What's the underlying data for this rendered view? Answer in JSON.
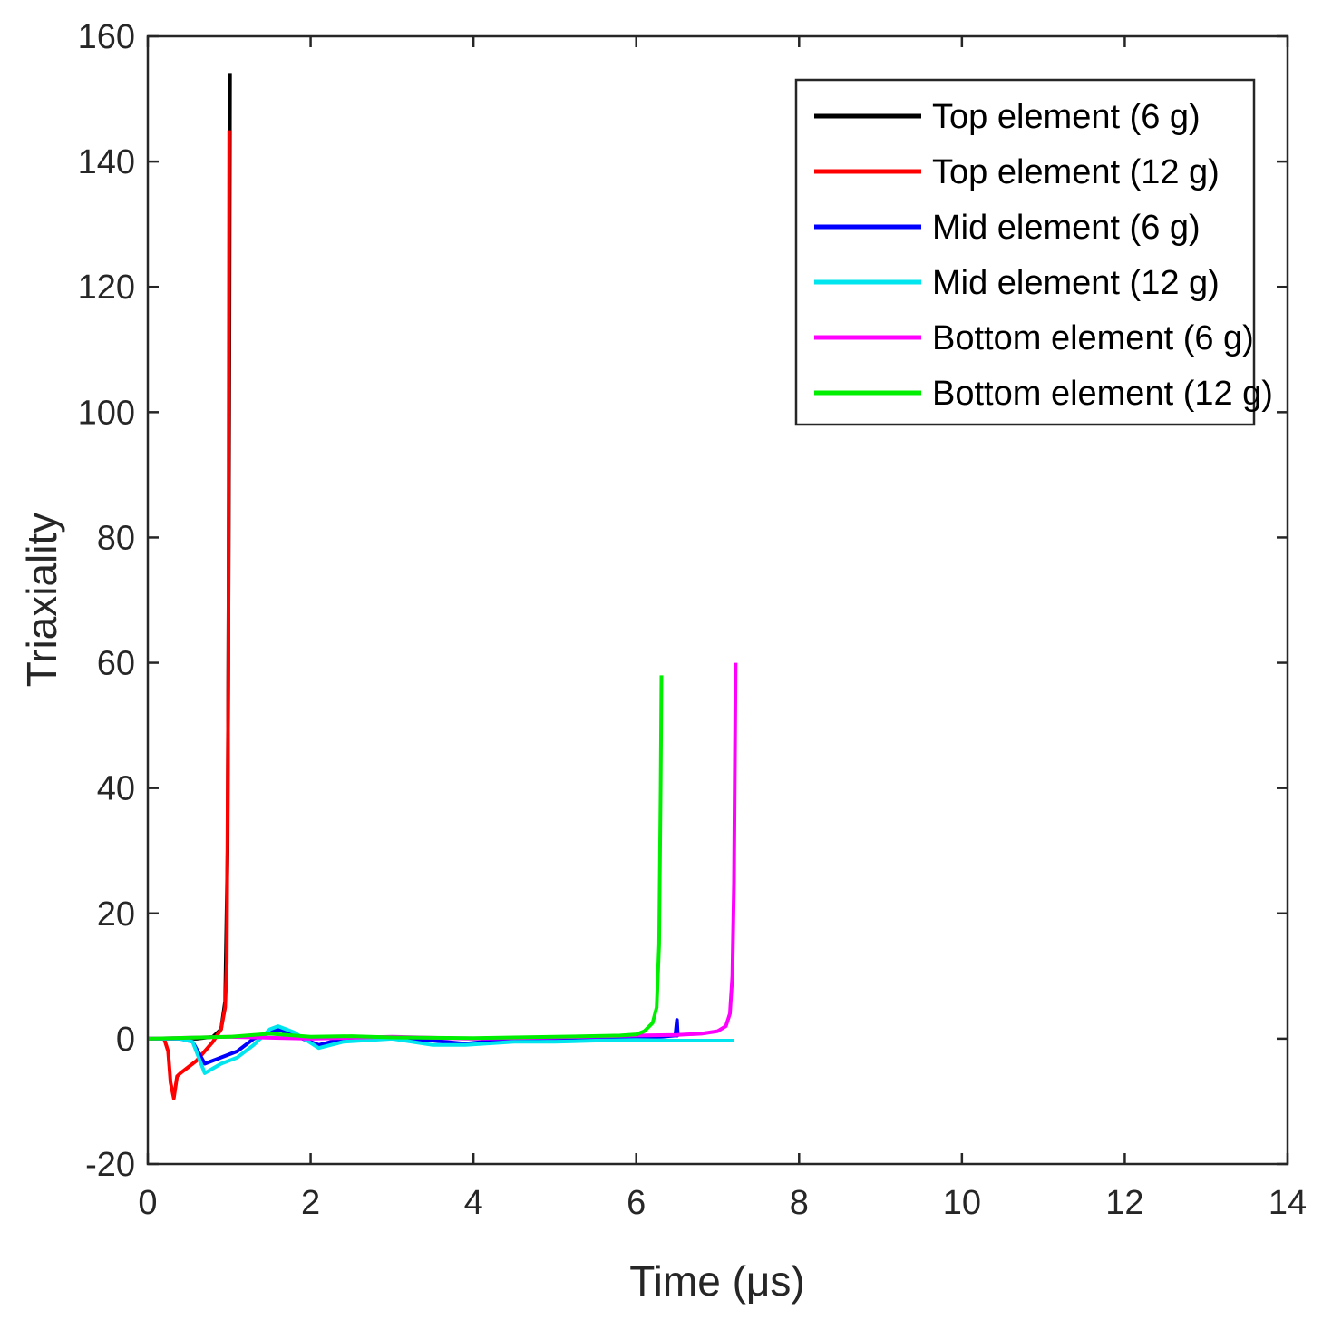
{
  "chart_data": {
    "type": "line",
    "title": "",
    "xlabel": "Time (μs)",
    "ylabel": "Triaxiality",
    "xlim": [
      0,
      14
    ],
    "ylim": [
      -20,
      160
    ],
    "xticks": [
      0,
      2,
      4,
      6,
      8,
      10,
      12,
      14
    ],
    "yticks": [
      -20,
      0,
      20,
      40,
      60,
      80,
      100,
      120,
      140,
      160
    ],
    "grid": false,
    "legend_position": "top-right",
    "series": [
      {
        "name": "Top element (6 g)",
        "color": "#000000",
        "x": [
          0,
          0.3,
          0.6,
          0.8,
          0.9,
          0.95,
          0.98,
          1.0,
          1.01
        ],
        "y": [
          0,
          0,
          0,
          0.3,
          1.5,
          6,
          30,
          100,
          154
        ]
      },
      {
        "name": "Top element (12 g)",
        "color": "#ff0000",
        "x": [
          0,
          0.2,
          0.25,
          0.28,
          0.32,
          0.36,
          0.4,
          0.5,
          0.6,
          0.7,
          0.8,
          0.85,
          0.9,
          0.95,
          0.97,
          0.99,
          1.0
        ],
        "y": [
          0,
          0,
          -2,
          -7,
          -9.5,
          -6,
          -5.5,
          -4.5,
          -3.5,
          -2,
          -0.5,
          0.5,
          1.5,
          5,
          12,
          60,
          145
        ]
      },
      {
        "name": "Mid element (6 g)",
        "color": "#0000ff",
        "x": [
          0,
          0.4,
          0.55,
          0.7,
          0.9,
          1.1,
          1.3,
          1.6,
          1.8,
          2.1,
          2.4,
          3.0,
          3.5,
          3.9,
          4.5,
          5.0,
          5.5,
          6.0,
          6.3,
          6.48,
          6.5,
          6.51,
          6.52
        ],
        "y": [
          0,
          0,
          -0.5,
          -4,
          -3,
          -2,
          0,
          1.5,
          0.5,
          -1,
          0,
          0.2,
          -0.3,
          -0.8,
          0,
          0.1,
          0,
          0.2,
          0.3,
          0.5,
          3,
          0.5,
          0.3
        ]
      },
      {
        "name": "Mid element (12 g)",
        "color": "#00e5ee",
        "x": [
          0,
          0.4,
          0.55,
          0.7,
          0.9,
          1.1,
          1.3,
          1.5,
          1.6,
          1.8,
          2.1,
          2.4,
          3.0,
          3.5,
          3.9,
          4.5,
          5.0,
          5.5,
          6.0,
          6.5,
          7.0,
          7.2
        ],
        "y": [
          0,
          0,
          -0.5,
          -5.5,
          -4,
          -3,
          -1,
          1.5,
          2,
          1,
          -1.5,
          -0.5,
          0,
          -1,
          -1,
          -0.5,
          -0.5,
          -0.3,
          -0.2,
          -0.3,
          -0.3,
          -0.3
        ]
      },
      {
        "name": "Bottom element (6 g)",
        "color": "#ff00ff",
        "x": [
          0,
          1.0,
          2.0,
          3.0,
          4.0,
          5.0,
          6.0,
          6.5,
          6.8,
          7.0,
          7.1,
          7.15,
          7.18,
          7.2,
          7.22
        ],
        "y": [
          0,
          0.3,
          0,
          0.3,
          0,
          0.2,
          0.5,
          0.6,
          0.8,
          1.2,
          2,
          4,
          10,
          25,
          60
        ]
      },
      {
        "name": "Bottom element (12 g)",
        "color": "#00ee00",
        "x": [
          0,
          1.0,
          1.5,
          2.0,
          2.5,
          3.0,
          4.0,
          5.0,
          5.8,
          6.0,
          6.1,
          6.2,
          6.25,
          6.28,
          6.3,
          6.31
        ],
        "y": [
          0,
          0.3,
          0.8,
          0.3,
          0.4,
          0.2,
          0.1,
          0.3,
          0.5,
          0.7,
          1.2,
          2.5,
          5,
          15,
          40,
          58
        ]
      }
    ]
  }
}
